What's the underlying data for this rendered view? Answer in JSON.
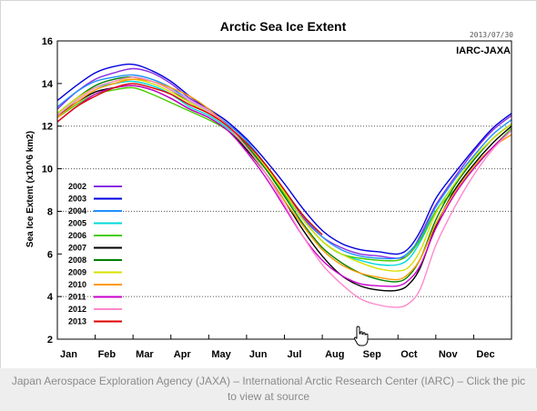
{
  "caption": {
    "text": "Japan Aerospace Exploration Agency (JAXA) – International Arctic Research Center (IARC) – Click the pic to view at source"
  },
  "colors": {
    "frame_border": "#d6d6d6",
    "caption_bg": "#eeeeee",
    "caption_text": "#8a8a8a"
  },
  "chart_data": {
    "type": "line",
    "title": "Arctic Sea Ice Extent",
    "date_stamp": "2013/07/30",
    "source_label": "IARC-JAXA",
    "ylabel": "Sea Ice Extent (x10^6 km2)",
    "xlabel": "",
    "ylim": [
      2,
      16
    ],
    "xlim": [
      0,
      12
    ],
    "yticks": [
      2,
      4,
      6,
      8,
      10,
      12,
      14,
      16
    ],
    "gridlines": [
      4,
      8,
      10,
      12
    ],
    "month_labels": [
      "Jan",
      "Feb",
      "Mar",
      "Apr",
      "May",
      "Jun",
      "Jul",
      "Aug",
      "Sep",
      "Oct",
      "Nov",
      "Dec"
    ],
    "x_unit": "month (0 = 1 Jan, 12 = 31 Dec)",
    "legend_position": "left",
    "series": [
      {
        "name": "2002",
        "color": "#8a2be2",
        "x": [
          0,
          0.5,
          1,
          1.5,
          2,
          2.5,
          3,
          3.5,
          4,
          4.5,
          5,
          5.5,
          6,
          6.5,
          7,
          7.5,
          8,
          8.5,
          9,
          9.3,
          9.6,
          10,
          10.5,
          11,
          11.5,
          12
        ],
        "y": [
          12.8,
          13.6,
          14.2,
          14.5,
          14.7,
          14.5,
          14.0,
          13.3,
          12.8,
          12.2,
          11.3,
          10.2,
          9.0,
          7.7,
          6.8,
          6.3,
          6.0,
          5.9,
          5.8,
          6.0,
          6.9,
          8.3,
          9.6,
          10.8,
          11.8,
          12.5
        ]
      },
      {
        "name": "2003",
        "color": "#0000e0",
        "x": [
          0,
          0.5,
          1,
          1.5,
          2,
          2.5,
          3,
          3.5,
          4,
          4.5,
          5,
          5.5,
          6,
          6.5,
          7,
          7.5,
          8,
          8.5,
          9,
          9.3,
          9.6,
          10,
          10.5,
          11,
          11.5,
          12
        ],
        "y": [
          13.2,
          13.9,
          14.5,
          14.8,
          14.9,
          14.6,
          14.1,
          13.4,
          12.8,
          12.2,
          11.4,
          10.4,
          9.3,
          8.1,
          7.1,
          6.5,
          6.2,
          6.1,
          6.0,
          6.3,
          7.1,
          8.6,
          9.8,
          10.9,
          11.9,
          12.6
        ]
      },
      {
        "name": "2004",
        "color": "#1e90ff",
        "x": [
          0,
          0.5,
          1,
          1.5,
          2,
          2.5,
          3,
          3.5,
          4,
          4.5,
          5,
          5.5,
          6,
          6.5,
          7,
          7.5,
          8,
          8.5,
          9,
          9.3,
          9.6,
          10,
          10.5,
          11,
          11.5,
          12
        ],
        "y": [
          12.9,
          13.6,
          14.1,
          14.3,
          14.4,
          14.2,
          13.8,
          13.2,
          12.7,
          12.1,
          11.3,
          10.2,
          9.0,
          7.8,
          6.8,
          6.2,
          5.9,
          5.8,
          5.8,
          6.1,
          6.8,
          8.2,
          9.5,
          10.6,
          11.6,
          12.3
        ]
      },
      {
        "name": "2005",
        "color": "#00d8d8",
        "x": [
          0,
          0.5,
          1,
          1.5,
          2,
          2.5,
          3,
          3.5,
          4,
          4.5,
          5,
          5.5,
          6,
          6.5,
          7,
          7.5,
          8,
          8.5,
          9,
          9.3,
          9.6,
          10,
          10.5,
          11,
          11.5,
          12
        ],
        "y": [
          12.6,
          13.3,
          13.8,
          14.0,
          14.1,
          13.9,
          13.5,
          12.9,
          12.5,
          11.9,
          11.1,
          10.0,
          8.8,
          7.6,
          6.6,
          6.0,
          5.7,
          5.5,
          5.5,
          5.8,
          6.6,
          8.0,
          9.3,
          10.4,
          11.4,
          12.1
        ]
      },
      {
        "name": "2006",
        "color": "#44cc00",
        "x": [
          0,
          0.5,
          1,
          1.5,
          2,
          2.5,
          3,
          3.5,
          4,
          4.5,
          5,
          5.5,
          6,
          6.5,
          7,
          7.5,
          8,
          8.5,
          9,
          9.3,
          9.6,
          10,
          10.5,
          11,
          11.5,
          12
        ],
        "y": [
          12.4,
          13.0,
          13.5,
          13.7,
          13.8,
          13.5,
          13.1,
          12.7,
          12.3,
          11.8,
          11.0,
          10.0,
          8.8,
          7.6,
          6.6,
          6.0,
          5.8,
          5.7,
          5.7,
          6.0,
          6.7,
          8.0,
          9.0,
          10.0,
          11.0,
          11.9
        ]
      },
      {
        "name": "2007",
        "color": "#000000",
        "x": [
          0,
          0.5,
          1,
          1.5,
          2,
          2.5,
          3,
          3.5,
          4,
          4.5,
          5,
          5.5,
          6,
          6.5,
          7,
          7.5,
          8,
          8.5,
          9,
          9.3,
          9.6,
          10,
          10.5,
          11,
          11.5,
          12
        ],
        "y": [
          12.5,
          13.1,
          13.6,
          13.8,
          13.9,
          13.7,
          13.3,
          12.8,
          12.4,
          11.8,
          10.9,
          9.8,
          8.5,
          7.1,
          5.9,
          5.0,
          4.5,
          4.3,
          4.3,
          4.6,
          5.4,
          7.3,
          9.0,
          10.2,
          11.2,
          12.0
        ]
      },
      {
        "name": "2008",
        "color": "#008000",
        "x": [
          0,
          0.5,
          1,
          1.5,
          2,
          2.5,
          3,
          3.5,
          4,
          4.5,
          5,
          5.5,
          6,
          6.5,
          7,
          7.5,
          8,
          8.5,
          9,
          9.3,
          9.6,
          10,
          10.5,
          11,
          11.5,
          12
        ],
        "y": [
          12.6,
          13.3,
          13.9,
          14.2,
          14.3,
          14.1,
          13.7,
          13.1,
          12.6,
          12.0,
          11.1,
          10.0,
          8.7,
          7.4,
          6.3,
          5.6,
          5.1,
          4.8,
          4.7,
          5.0,
          5.8,
          7.6,
          9.2,
          10.4,
          11.4,
          12.1
        ]
      },
      {
        "name": "2009",
        "color": "#d8e000",
        "x": [
          0,
          0.5,
          1,
          1.5,
          2,
          2.5,
          3,
          3.5,
          4,
          4.5,
          5,
          5.5,
          6,
          6.5,
          7,
          7.5,
          8,
          8.5,
          9,
          9.3,
          9.6,
          10,
          10.5,
          11,
          11.5,
          12
        ],
        "y": [
          12.6,
          13.3,
          13.8,
          14.1,
          14.2,
          14.0,
          13.6,
          13.1,
          12.6,
          12.0,
          11.2,
          10.1,
          8.9,
          7.6,
          6.6,
          6.0,
          5.6,
          5.3,
          5.2,
          5.4,
          6.2,
          7.9,
          9.3,
          10.5,
          11.4,
          12.1
        ]
      },
      {
        "name": "2010",
        "color": "#ff9900",
        "x": [
          0,
          0.5,
          1,
          1.5,
          2,
          2.5,
          3,
          3.5,
          4,
          4.5,
          5,
          5.5,
          6,
          6.5,
          7,
          7.5,
          8,
          8.5,
          9,
          9.3,
          9.6,
          10,
          10.5,
          11,
          11.5,
          12
        ],
        "y": [
          12.4,
          13.1,
          13.7,
          14.0,
          14.2,
          14.1,
          13.8,
          13.4,
          12.8,
          12.0,
          11.0,
          9.8,
          8.5,
          7.3,
          6.2,
          5.5,
          5.1,
          4.9,
          4.8,
          5.1,
          5.8,
          7.4,
          8.9,
          10.1,
          11.0,
          11.6
        ]
      },
      {
        "name": "2011",
        "color": "#cc00cc",
        "x": [
          0,
          0.5,
          1,
          1.5,
          2,
          2.5,
          3,
          3.5,
          4,
          4.5,
          5,
          5.5,
          6,
          6.5,
          7,
          7.5,
          8,
          8.5,
          9,
          9.3,
          9.6,
          10,
          10.5,
          11,
          11.5,
          12
        ],
        "y": [
          12.2,
          12.9,
          13.5,
          13.8,
          13.9,
          13.7,
          13.3,
          12.8,
          12.4,
          11.8,
          10.8,
          9.6,
          8.2,
          6.8,
          5.7,
          5.0,
          4.6,
          4.5,
          4.5,
          4.8,
          5.5,
          7.2,
          8.8,
          10.0,
          11.0,
          11.8
        ]
      },
      {
        "name": "2012",
        "color": "#ff88cc",
        "x": [
          0,
          0.5,
          1,
          1.5,
          2,
          2.5,
          3,
          3.5,
          4,
          4.5,
          5,
          5.5,
          6,
          6.5,
          7,
          7.5,
          8,
          8.5,
          9,
          9.3,
          9.6,
          10,
          10.5,
          11,
          11.5,
          12
        ],
        "y": [
          12.5,
          13.2,
          13.8,
          14.1,
          14.3,
          14.1,
          13.7,
          13.2,
          12.7,
          12.0,
          11.0,
          9.8,
          8.3,
          6.8,
          5.5,
          4.6,
          3.9,
          3.6,
          3.5,
          3.7,
          4.4,
          6.4,
          8.2,
          9.7,
          10.9,
          11.8
        ]
      },
      {
        "name": "2013",
        "color": "#e00000",
        "x": [
          0,
          0.5,
          1,
          1.5,
          2,
          2.5,
          3,
          3.5,
          4,
          4.5,
          5,
          5.5,
          6,
          6.5,
          7
        ],
        "y": [
          12.2,
          12.9,
          13.4,
          13.8,
          14.0,
          13.8,
          13.5,
          13.0,
          12.6,
          12.0,
          11.2,
          10.2,
          9.0,
          7.8,
          6.9
        ]
      }
    ]
  }
}
